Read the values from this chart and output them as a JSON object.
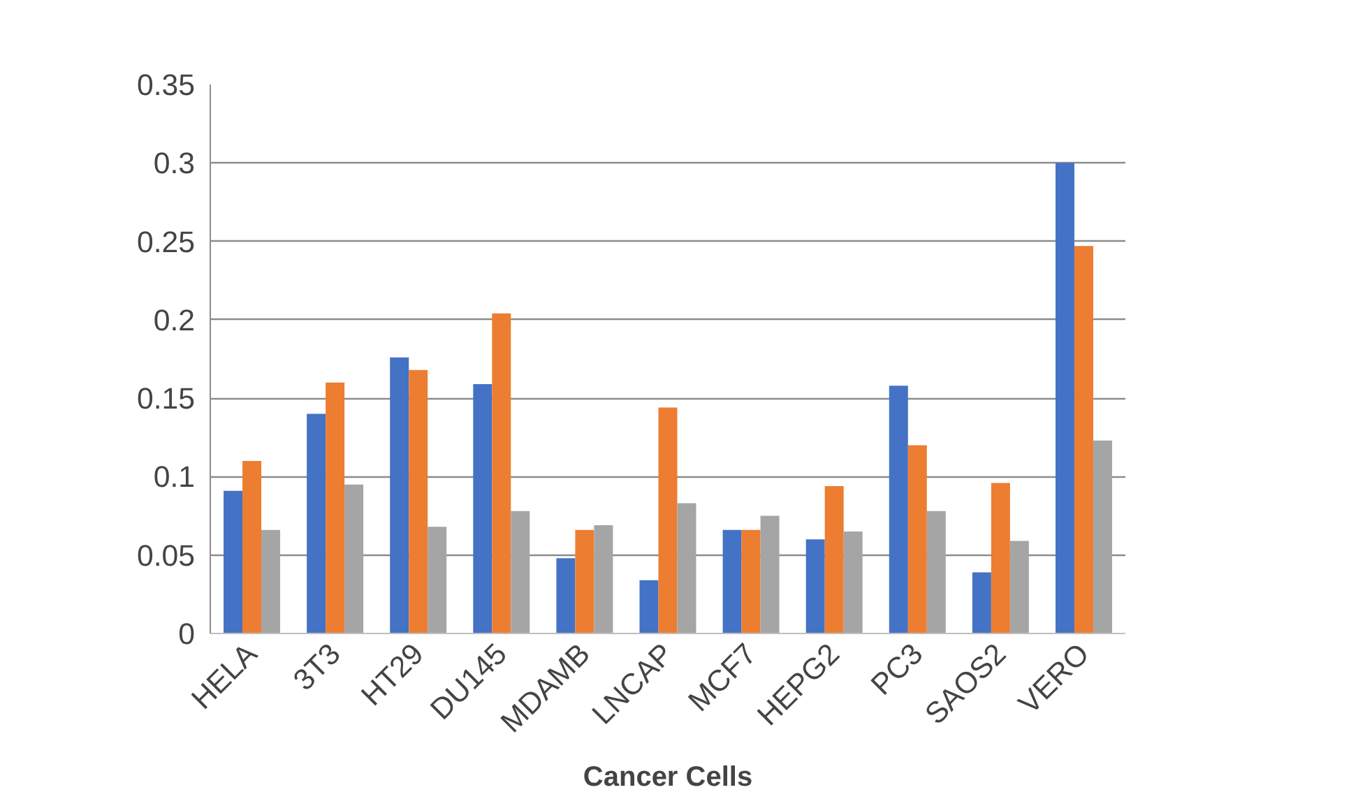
{
  "chart_data": {
    "type": "bar",
    "xlabel": "Cancer Cells",
    "categories": [
      "HELA",
      "3T3",
      "HT29",
      "DU145",
      "MDAMB",
      "LNCAP",
      "MCF7",
      "HEPG2",
      "PC3",
      "SAOS2",
      "VERO"
    ],
    "series": [
      {
        "color": "#4472c4",
        "values": [
          0.091,
          0.14,
          0.176,
          0.159,
          0.048,
          0.034,
          0.066,
          0.06,
          0.158,
          0.039,
          0.3
        ]
      },
      {
        "color": "#ed7d31",
        "values": [
          0.11,
          0.16,
          0.168,
          0.204,
          0.066,
          0.144,
          0.066,
          0.094,
          0.12,
          0.096,
          0.247
        ]
      },
      {
        "color": "#a5a5a5",
        "values": [
          0.066,
          0.095,
          0.068,
          0.078,
          0.069,
          0.083,
          0.075,
          0.065,
          0.078,
          0.059,
          0.123
        ]
      }
    ],
    "ylim": [
      0,
      0.35
    ],
    "yticks": [
      0,
      0.05,
      0.1,
      0.15,
      0.2,
      0.25,
      0.3,
      0.35
    ],
    "grid": "y"
  }
}
